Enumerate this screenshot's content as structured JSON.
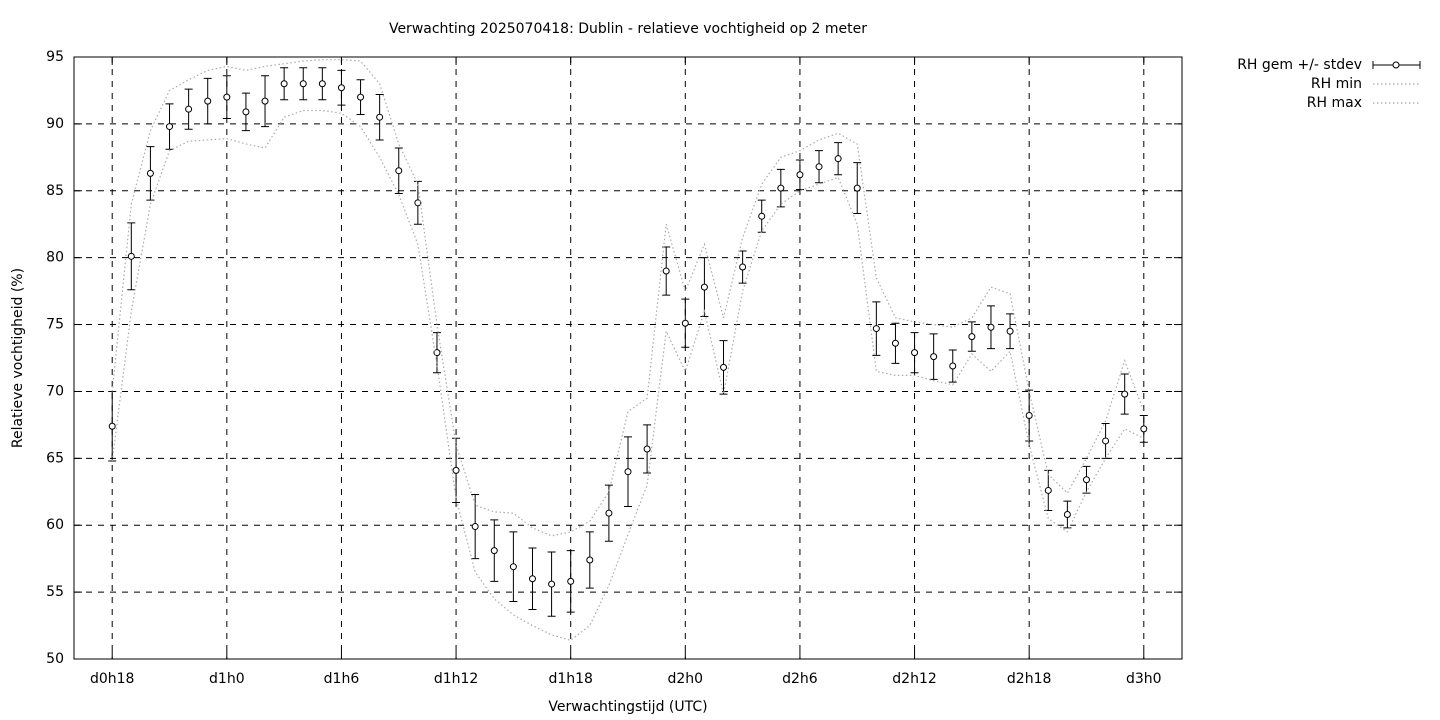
{
  "chart_data": {
    "type": "errorbar-line",
    "title": "Verwachting 2025070418: Dublin - relatieve vochtigheid op 2 meter",
    "x_label": "Verwachtingstijd (UTC)",
    "y_label": "Relatieve vochtigheid (%)",
    "x": [
      18,
      19,
      20,
      21,
      22,
      23,
      24,
      25,
      26,
      27,
      28,
      29,
      30,
      31,
      32,
      33,
      34,
      35,
      36,
      37,
      38,
      39,
      40,
      41,
      42,
      43,
      44,
      45,
      46,
      47,
      48,
      49,
      50,
      51,
      52,
      53,
      54,
      55,
      56,
      57,
      58,
      59,
      60,
      61,
      62,
      63,
      64,
      65,
      66,
      67,
      68,
      69,
      70,
      71,
      72
    ],
    "xlim": [
      16,
      74
    ],
    "xticks": [
      {
        "value": 18,
        "label": "d0h18"
      },
      {
        "value": 24,
        "label": "d1h0"
      },
      {
        "value": 30,
        "label": "d1h6"
      },
      {
        "value": 36,
        "label": "d1h12"
      },
      {
        "value": 42,
        "label": "d1h18"
      },
      {
        "value": 48,
        "label": "d2h0"
      },
      {
        "value": 54,
        "label": "d2h6"
      },
      {
        "value": 60,
        "label": "d2h12"
      },
      {
        "value": 66,
        "label": "d2h18"
      },
      {
        "value": 72,
        "label": "d3h0"
      }
    ],
    "ylim": [
      50,
      95
    ],
    "yticks": [
      50,
      55,
      60,
      65,
      70,
      75,
      80,
      85,
      90,
      95
    ],
    "grid": true,
    "legend": "outside-top-right",
    "series": [
      {
        "name": "RH gem +/- stdev",
        "color": "#000000",
        "style": "errorbars",
        "values": [
          67.4,
          80.1,
          86.3,
          89.8,
          91.1,
          91.7,
          92.0,
          90.9,
          91.7,
          93.0,
          93.0,
          93.0,
          92.7,
          92.0,
          90.5,
          86.5,
          84.1,
          72.9,
          64.1,
          59.9,
          58.1,
          56.9,
          56.0,
          55.6,
          55.8,
          57.4,
          60.9,
          64.0,
          65.7,
          79.0,
          75.1,
          77.8,
          71.8,
          79.3,
          83.1,
          85.2,
          86.2,
          86.8,
          87.4,
          85.2,
          74.7,
          73.6,
          72.9,
          72.6,
          71.9,
          74.1,
          74.8,
          74.5,
          68.2,
          62.6,
          60.8,
          63.4,
          66.3,
          69.8,
          67.2
        ],
        "errors": [
          2.6,
          2.5,
          2.0,
          1.7,
          1.5,
          1.7,
          1.6,
          1.4,
          1.9,
          1.2,
          1.2,
          1.2,
          1.3,
          1.3,
          1.7,
          1.7,
          1.6,
          1.5,
          2.4,
          2.4,
          2.3,
          2.6,
          2.3,
          2.4,
          2.3,
          2.1,
          2.1,
          2.6,
          1.8,
          1.8,
          1.8,
          2.2,
          2.0,
          1.2,
          1.2,
          1.4,
          1.1,
          1.2,
          1.2,
          1.9,
          2.0,
          1.5,
          1.5,
          1.7,
          1.2,
          1.1,
          1.6,
          1.3,
          1.9,
          1.5,
          1.0,
          1.0,
          1.3,
          1.5,
          1.0
        ]
      },
      {
        "name": "RH min",
        "color": "#aaaaaa",
        "style": "dotted",
        "values": [
          64.8,
          76,
          84,
          88,
          88.7,
          88.8,
          88.9,
          88.5,
          88.2,
          90.5,
          91,
          91,
          90.8,
          89.8,
          87.5,
          84.7,
          81,
          72,
          62,
          56.5,
          54.5,
          53.3,
          52.5,
          51.8,
          51.4,
          52.5,
          55.5,
          59.3,
          63,
          74.5,
          71.5,
          76,
          69.8,
          77.5,
          82,
          84,
          85,
          85.5,
          86,
          82.5,
          71.5,
          71.2,
          71.2,
          70.8,
          70.5,
          72.8,
          71.5,
          73,
          66,
          60.5,
          59.5,
          62.5,
          65,
          67.2,
          66.5
        ]
      },
      {
        "name": "RH max",
        "color": "#aaaaaa",
        "style": "dotted",
        "values": [
          70,
          84,
          89.5,
          92.5,
          93.3,
          94,
          94.3,
          94,
          94.3,
          94.5,
          94.7,
          94.8,
          94.8,
          94.7,
          93,
          88.5,
          85.5,
          75,
          66,
          61.5,
          61,
          60.9,
          59.8,
          59.2,
          59.5,
          60.3,
          62.5,
          68.5,
          69.5,
          82.5,
          77.5,
          81,
          75.5,
          81.5,
          85.5,
          87.5,
          88,
          88.8,
          89.3,
          88.5,
          78.5,
          75.5,
          75.2,
          75,
          74.8,
          75.5,
          77.8,
          77.3,
          70,
          63.8,
          62.4,
          65,
          67.8,
          72.3,
          68.5
        ]
      }
    ]
  }
}
